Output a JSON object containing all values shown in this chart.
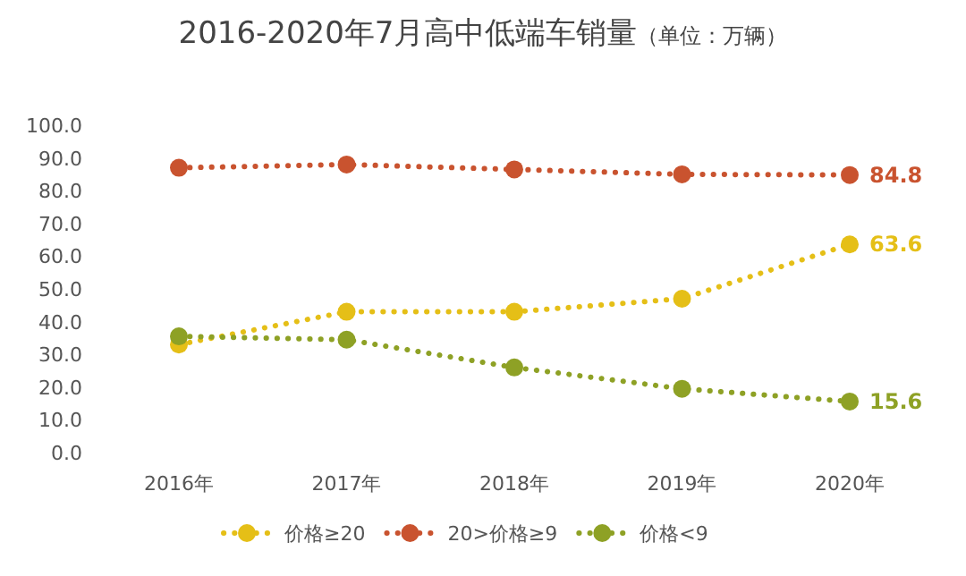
{
  "chart_data": {
    "type": "line",
    "title": "2016-2020年7月高中低端车销量",
    "subtitle": "（单位：万辆）",
    "categories": [
      "2016年",
      "2017年",
      "2018年",
      "2019年",
      "2020年"
    ],
    "series": [
      {
        "name": "价格≥20",
        "color": "#e5bf17",
        "values": [
          33,
          43,
          43,
          47,
          63.6
        ],
        "value_labels": [
          null,
          null,
          null,
          null,
          "63.6"
        ]
      },
      {
        "name": "20>价格≥9",
        "color": "#c9532f",
        "values": [
          87,
          88,
          86.5,
          85,
          84.8
        ],
        "value_labels": [
          null,
          null,
          null,
          null,
          "84.8"
        ]
      },
      {
        "name": "价格<9",
        "color": "#8ea125",
        "values": [
          35.5,
          34.5,
          26,
          19.5,
          15.6
        ],
        "value_labels": [
          null,
          null,
          null,
          null,
          "15.6"
        ]
      }
    ],
    "ylim": [
      0,
      100
    ],
    "yticks": [
      {
        "value": 0,
        "label": "0.0"
      },
      {
        "value": 10,
        "label": "10.0"
      },
      {
        "value": 20,
        "label": "20.0"
      },
      {
        "value": 30,
        "label": "30.0"
      },
      {
        "value": 40,
        "label": "40.0"
      },
      {
        "value": 50,
        "label": "50.0"
      },
      {
        "value": 60,
        "label": "60.0"
      },
      {
        "value": 70,
        "label": "70.0"
      },
      {
        "value": 80,
        "label": "80.0"
      },
      {
        "value": 90,
        "label": "90.0"
      },
      {
        "value": 100,
        "label": "100.0"
      }
    ],
    "grid": false,
    "legend": "bottom",
    "marker": "circle",
    "line_style": "dotted"
  }
}
